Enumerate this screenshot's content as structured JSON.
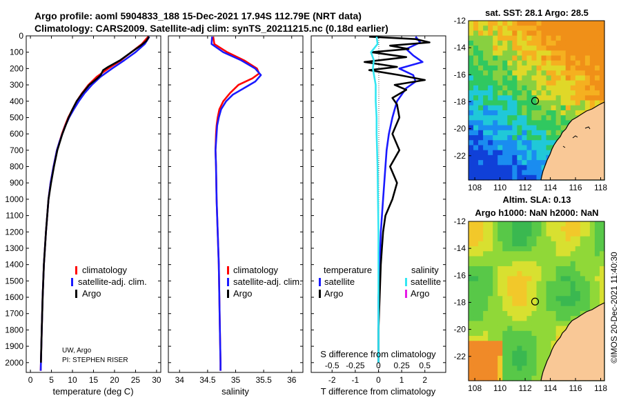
{
  "header": {
    "line1": "Argo profile: aoml 5904833_188 15-Dec-2021 17.94S 112.79E (NRT data)",
    "line2": "Climatology: CARS2009. Satellite-adj clim: synTS_20211215.nc (0.18d earlier)"
  },
  "colors": {
    "climatology": "#ff0000",
    "satellite_adj": "#1a1aff",
    "argo": "#000000",
    "salinity_satellite": "#33e6f2",
    "salinity_argo": "#e61ae6",
    "land": "#f9c896",
    "frame": "#000000"
  },
  "chart_data": [
    {
      "type": "line",
      "name": "temperature-profile",
      "xlabel": "temperature (deg C)",
      "ylabel": "",
      "xlim": [
        -1,
        31
      ],
      "ylim": [
        2060,
        0
      ],
      "xticks": [
        0,
        5,
        10,
        15,
        20,
        25,
        30
      ],
      "yticks": [
        0,
        100,
        200,
        300,
        400,
        500,
        600,
        700,
        800,
        900,
        1000,
        1100,
        1200,
        1300,
        1400,
        1500,
        1600,
        1700,
        1800,
        1900,
        2000
      ],
      "legend": [
        "climatology",
        "satellite-adj. clim.",
        "Argo"
      ],
      "legend_position": "lower-right",
      "annotation": [
        "UW, Argo",
        "PI: STEPHEN RISER"
      ],
      "series": [
        {
          "name": "climatology",
          "depth": [
            5,
            50,
            100,
            150,
            200,
            250,
            300,
            350,
            400,
            450,
            500,
            550,
            600,
            650,
            700,
            800,
            900,
            1000,
            1200,
            1400,
            1600,
            1800,
            2000,
            2050
          ],
          "values": [
            28.0,
            26.5,
            24.0,
            21.5,
            18.5,
            15.8,
            13.8,
            12.3,
            11.0,
            10.0,
            9.0,
            8.2,
            7.5,
            6.9,
            6.3,
            5.5,
            4.8,
            4.3,
            3.7,
            3.2,
            2.9,
            2.7,
            2.5,
            2.45
          ]
        },
        {
          "name": "satellite-adj. clim.",
          "depth": [
            5,
            50,
            100,
            150,
            200,
            250,
            300,
            350,
            400,
            450,
            500,
            550,
            600,
            650,
            700,
            800,
            900,
            1000,
            1200,
            1400,
            1600,
            1800,
            2000,
            2050
          ],
          "values": [
            28.3,
            27.2,
            25.0,
            22.3,
            19.4,
            16.7,
            14.6,
            12.9,
            11.5,
            10.3,
            9.2,
            8.3,
            7.6,
            6.9,
            6.3,
            5.5,
            4.8,
            4.3,
            3.7,
            3.2,
            2.9,
            2.7,
            2.5,
            2.45
          ]
        },
        {
          "name": "Argo",
          "depth": [
            5,
            30,
            60,
            100,
            150,
            190,
            210,
            240,
            260,
            300,
            350,
            400,
            450,
            500,
            600,
            700,
            800,
            900,
            1000,
            1200,
            1400,
            1600,
            1800,
            2000
          ],
          "values": [
            28.2,
            27.6,
            26.2,
            24.0,
            21.3,
            18.5,
            17.3,
            16.7,
            15.9,
            14.0,
            12.4,
            11.0,
            10.0,
            9.1,
            7.6,
            6.4,
            5.6,
            4.9,
            4.3,
            3.7,
            3.2,
            2.9,
            2.7,
            2.5
          ]
        }
      ]
    },
    {
      "type": "line",
      "name": "salinity-profile",
      "xlabel": "salinity",
      "xlim": [
        33.8,
        36.2
      ],
      "ylim": [
        2060,
        0
      ],
      "xticks": [
        34,
        34.5,
        35,
        35.5,
        36
      ],
      "xticklabels": [
        "34",
        "34.5",
        "35",
        "35.5",
        "36"
      ],
      "legend": [
        "climatology",
        "satellite-adj. clim.",
        "Argo"
      ],
      "series": [
        {
          "name": "climatology",
          "depth": [
            5,
            50,
            100,
            150,
            200,
            230,
            260,
            300,
            350,
            400,
            450,
            500,
            550,
            600,
            700,
            800,
            1000,
            1200,
            1400,
            1600,
            1800,
            2000,
            2050
          ],
          "values": [
            34.6,
            34.62,
            34.85,
            35.15,
            35.38,
            35.42,
            35.3,
            35.05,
            34.9,
            34.78,
            34.71,
            34.68,
            34.66,
            34.65,
            34.64,
            34.65,
            34.66,
            34.68,
            34.7,
            34.71,
            34.72,
            34.73,
            34.73
          ]
        },
        {
          "name": "satellite-adj. clim.",
          "depth": [
            5,
            50,
            100,
            150,
            200,
            240,
            280,
            320,
            360,
            400,
            450,
            500,
            550,
            600,
            700,
            800,
            1000,
            1200,
            1400,
            1600,
            1800,
            2000,
            2050
          ],
          "values": [
            34.58,
            34.57,
            34.78,
            35.1,
            35.35,
            35.45,
            35.35,
            35.15,
            34.95,
            34.83,
            34.74,
            34.7,
            34.67,
            34.66,
            34.64,
            34.65,
            34.66,
            34.68,
            34.7,
            34.71,
            34.72,
            34.73,
            34.73
          ]
        }
      ]
    },
    {
      "type": "line",
      "name": "difference-profile",
      "xlabel": "T difference from climatology",
      "xlabel2": "S difference from climatology",
      "xlim": [
        -2.9,
        2.9
      ],
      "ylim": [
        2060,
        0
      ],
      "xticks": [
        -2,
        -1,
        0,
        1,
        2
      ],
      "sticks": [
        "-0.5",
        "-0.25",
        "0",
        "0.25",
        "0.5"
      ],
      "legend_title_t": "temperature",
      "legend_title_s": "salinity",
      "legend_t": [
        "satellite",
        "Argo"
      ],
      "legend_s": [
        "satellite",
        "Argo"
      ],
      "series": [
        {
          "name": "T satellite",
          "depth": [
            5,
            40,
            80,
            120,
            160,
            200,
            240,
            280,
            320,
            360,
            400,
            450,
            500,
            600,
            700,
            800,
            900,
            1000,
            1200,
            1400,
            1600,
            1800,
            2000
          ],
          "values": [
            1.6,
            1.8,
            1.2,
            1.5,
            1.9,
            0.9,
            1.5,
            1.6,
            1.2,
            1.0,
            0.8,
            0.7,
            0.6,
            0.45,
            0.35,
            0.3,
            0.25,
            0.2,
            0.1,
            0.05,
            0.0,
            0.0,
            0.0
          ]
        },
        {
          "name": "T Argo",
          "depth": [
            5,
            20,
            40,
            60,
            80,
            100,
            130,
            160,
            190,
            210,
            240,
            270,
            300,
            330,
            380,
            420,
            500,
            600,
            700,
            800,
            900,
            1000,
            1100,
            1200,
            1300,
            1400,
            1600,
            1800,
            2000
          ],
          "values": [
            -0.4,
            1.6,
            2.2,
            0.5,
            1.3,
            -0.3,
            1.2,
            -0.6,
            0.8,
            -0.4,
            0.9,
            2.0,
            0.7,
            1.2,
            0.6,
            0.8,
            0.9,
            0.6,
            0.9,
            0.5,
            0.8,
            0.6,
            0.3,
            0.2,
            0.15,
            0.1,
            0.05,
            0.0,
            0.0
          ]
        },
        {
          "name": "S satellite",
          "depth": [
            5,
            50,
            100,
            150,
            200,
            300,
            400,
            500,
            600,
            800,
            1000,
            1200,
            1400,
            1600,
            1800,
            2000
          ],
          "values": [
            -0.02,
            -0.01,
            -0.08,
            -0.05,
            -0.06,
            -0.03,
            -0.03,
            -0.02,
            -0.02,
            -0.01,
            -0.005,
            0,
            0,
            0,
            0,
            0
          ]
        }
      ]
    },
    {
      "type": "heatmap",
      "name": "sst-map",
      "title": "sat. SST: 28.1 Argo: 28.5",
      "xlim": [
        107.5,
        118.3
      ],
      "ylim": [
        -23.8,
        -12
      ],
      "xticks": [
        108,
        110,
        112,
        114,
        116,
        118
      ],
      "yticks": [
        -12,
        -14,
        -16,
        -18,
        -20,
        -22
      ],
      "marker": {
        "lon": 112.79,
        "lat": -17.94
      }
    },
    {
      "type": "heatmap",
      "name": "sla-map",
      "title": "Altim. SLA: 0.13",
      "title2": "Argo h1000: NaN h2000: NaN",
      "xlim": [
        107.5,
        118.3
      ],
      "ylim": [
        -23.8,
        -12
      ],
      "xticks": [
        108,
        110,
        112,
        114,
        116,
        118
      ],
      "yticks": [
        -12,
        -14,
        -16,
        -18,
        -20,
        -22
      ],
      "marker": {
        "lon": 112.79,
        "lat": -17.94
      }
    }
  ],
  "credit": "©IMOS 20-Dec-2021 11:40:30"
}
